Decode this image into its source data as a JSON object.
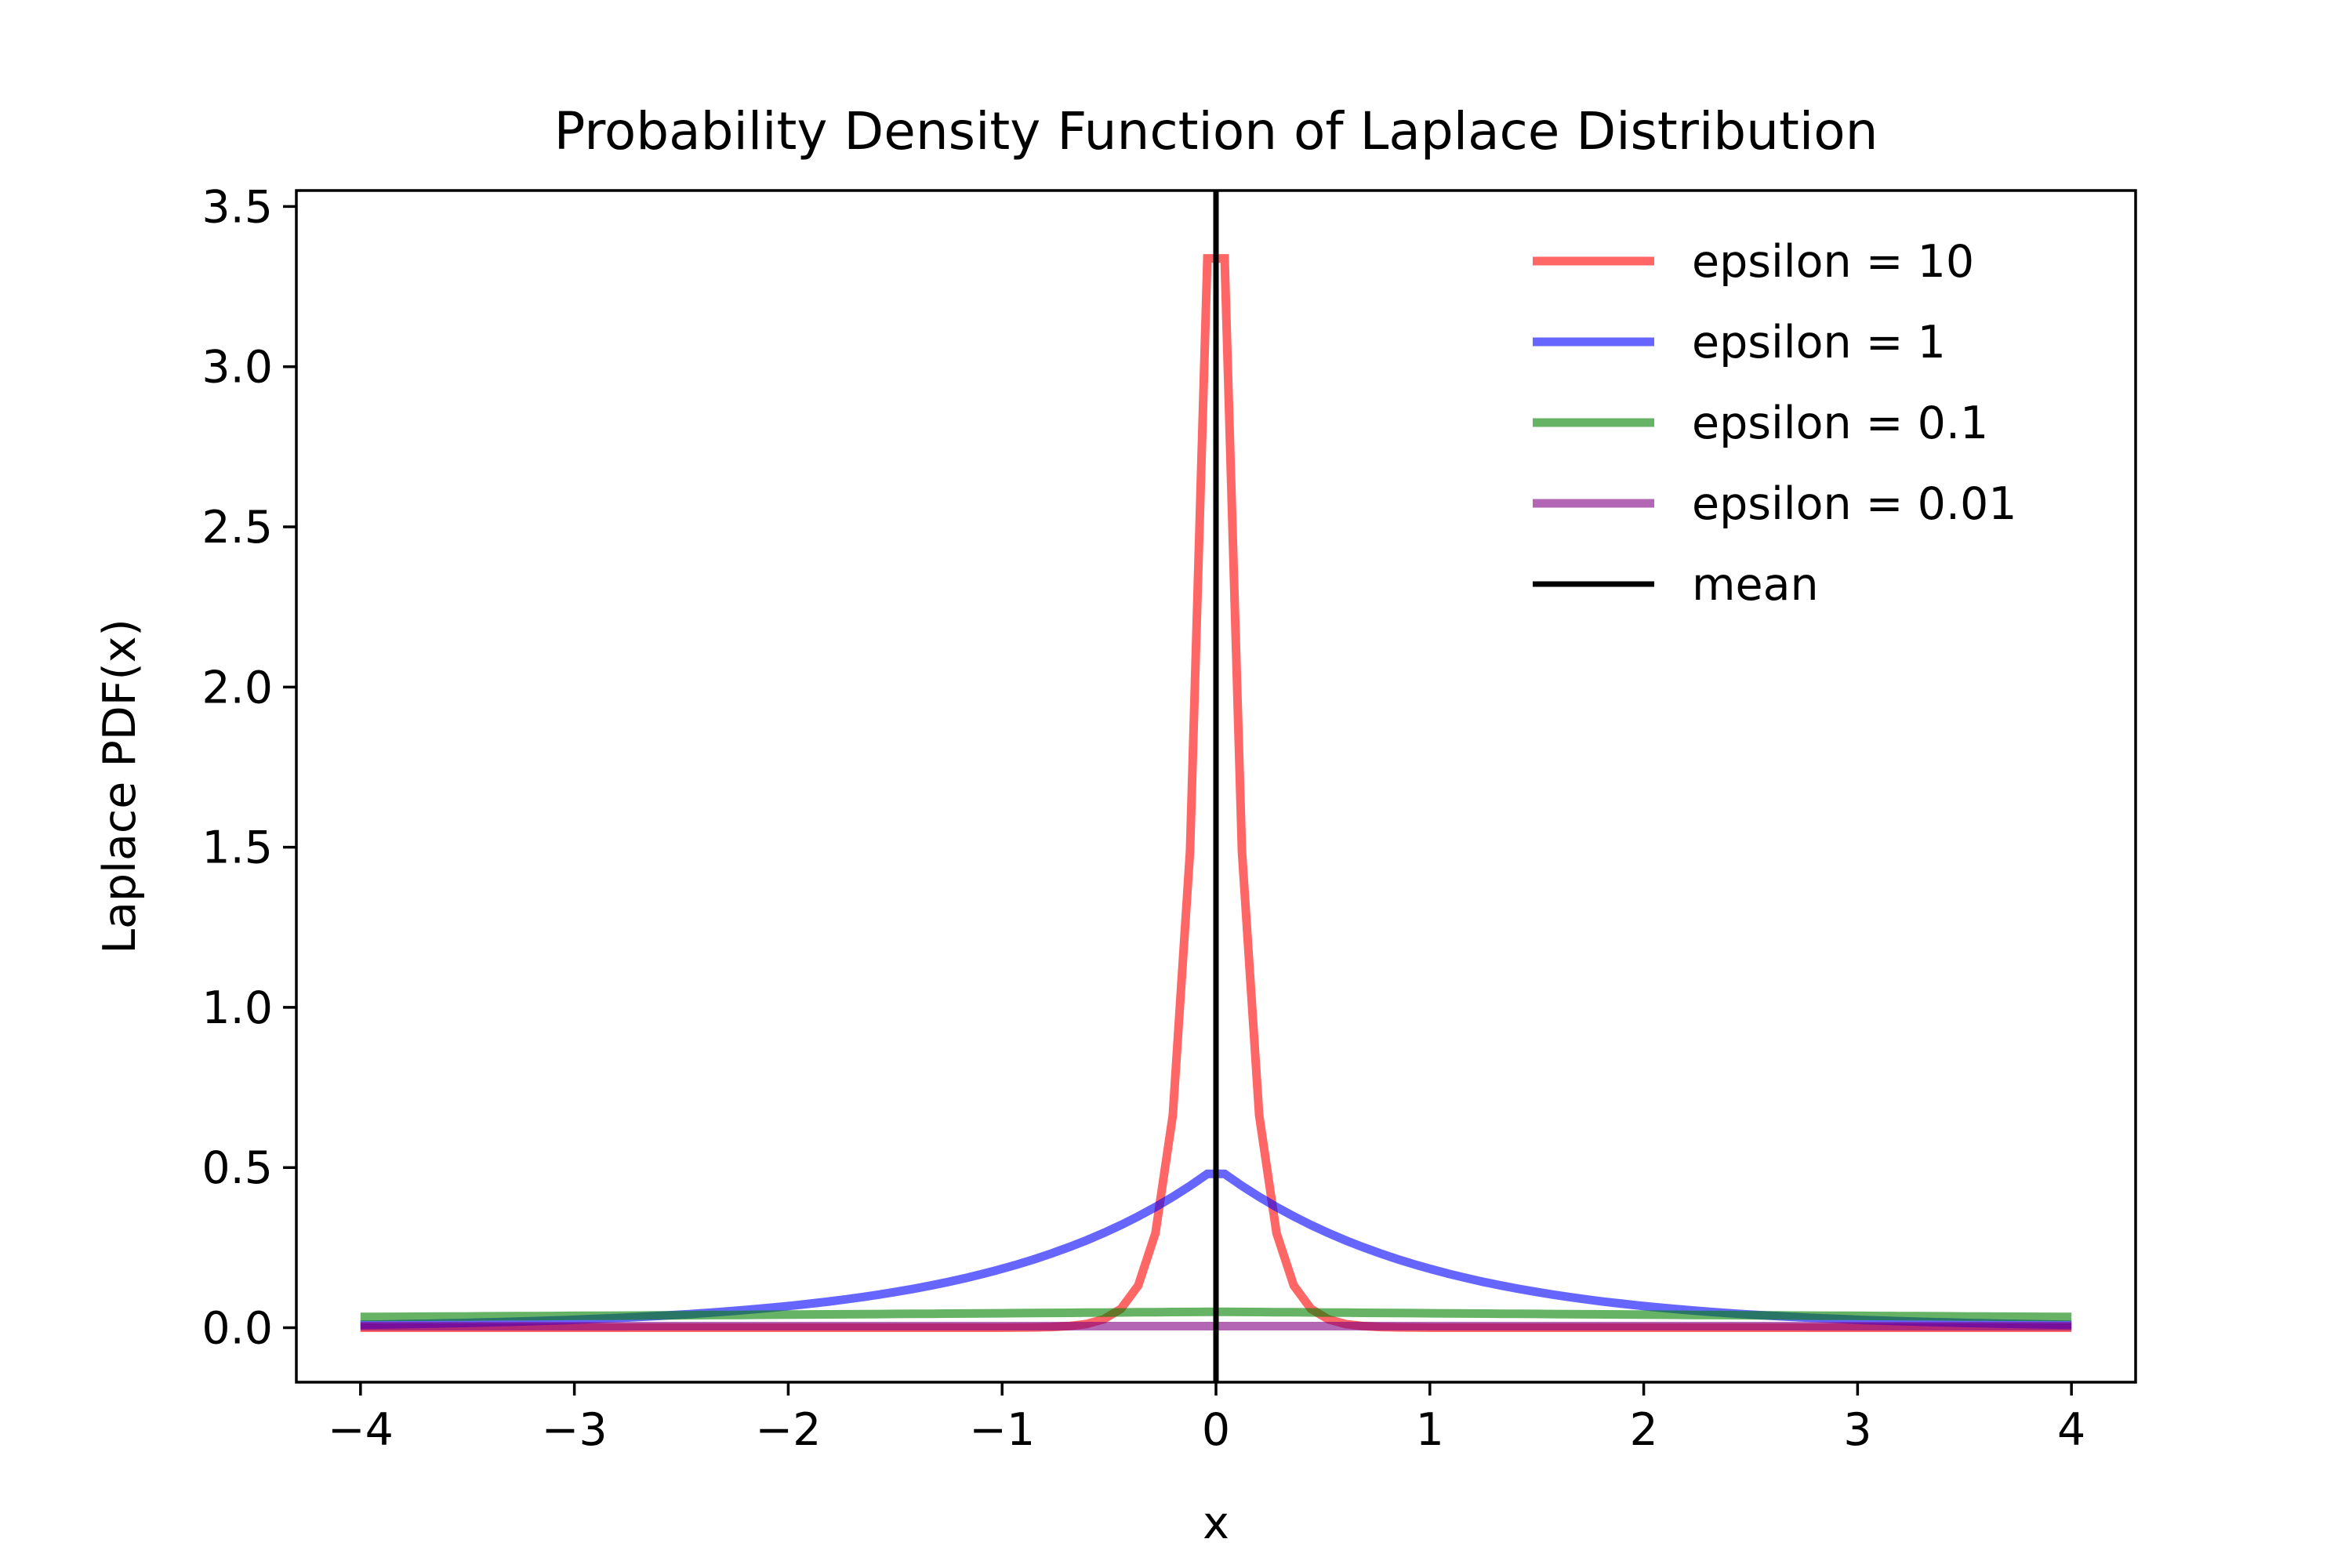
{
  "chart_data": {
    "type": "line",
    "title": "Probability Density Function of Laplace Distribution",
    "xlabel": "x",
    "ylabel": "Laplace PDF(x)",
    "xlim": [
      -4.3,
      4.3
    ],
    "ylim": [
      -0.17,
      3.55
    ],
    "x_ticks": [
      -4,
      -3,
      -2,
      -1,
      0,
      1,
      2,
      3,
      4
    ],
    "x_tick_labels": [
      "−4",
      "−3",
      "−2",
      "−1",
      "0",
      "1",
      "2",
      "3",
      "4"
    ],
    "y_ticks": [
      0.0,
      0.5,
      1.0,
      1.5,
      2.0,
      2.5,
      3.0,
      3.5
    ],
    "y_tick_labels": [
      "0.0",
      "0.5",
      "1.0",
      "1.5",
      "2.0",
      "2.5",
      "3.0",
      "3.5"
    ],
    "grid": false,
    "legend_position": "top-right",
    "x_range": [
      -4,
      4
    ],
    "num_points": 100,
    "series": [
      {
        "name": "epsilon = 10",
        "color": "#ff0000",
        "opacity": 0.6,
        "scale": 0.1
      },
      {
        "name": "epsilon = 1",
        "color": "#0000ff",
        "opacity": 0.6,
        "scale": 1
      },
      {
        "name": "epsilon = 0.1",
        "color": "#008000",
        "opacity": 0.6,
        "scale": 10
      },
      {
        "name": "epsilon = 0.01",
        "color": "#800080",
        "opacity": 0.6,
        "scale": 100
      }
    ],
    "mean": {
      "name": "mean",
      "x": 0,
      "color": "#000000"
    }
  }
}
